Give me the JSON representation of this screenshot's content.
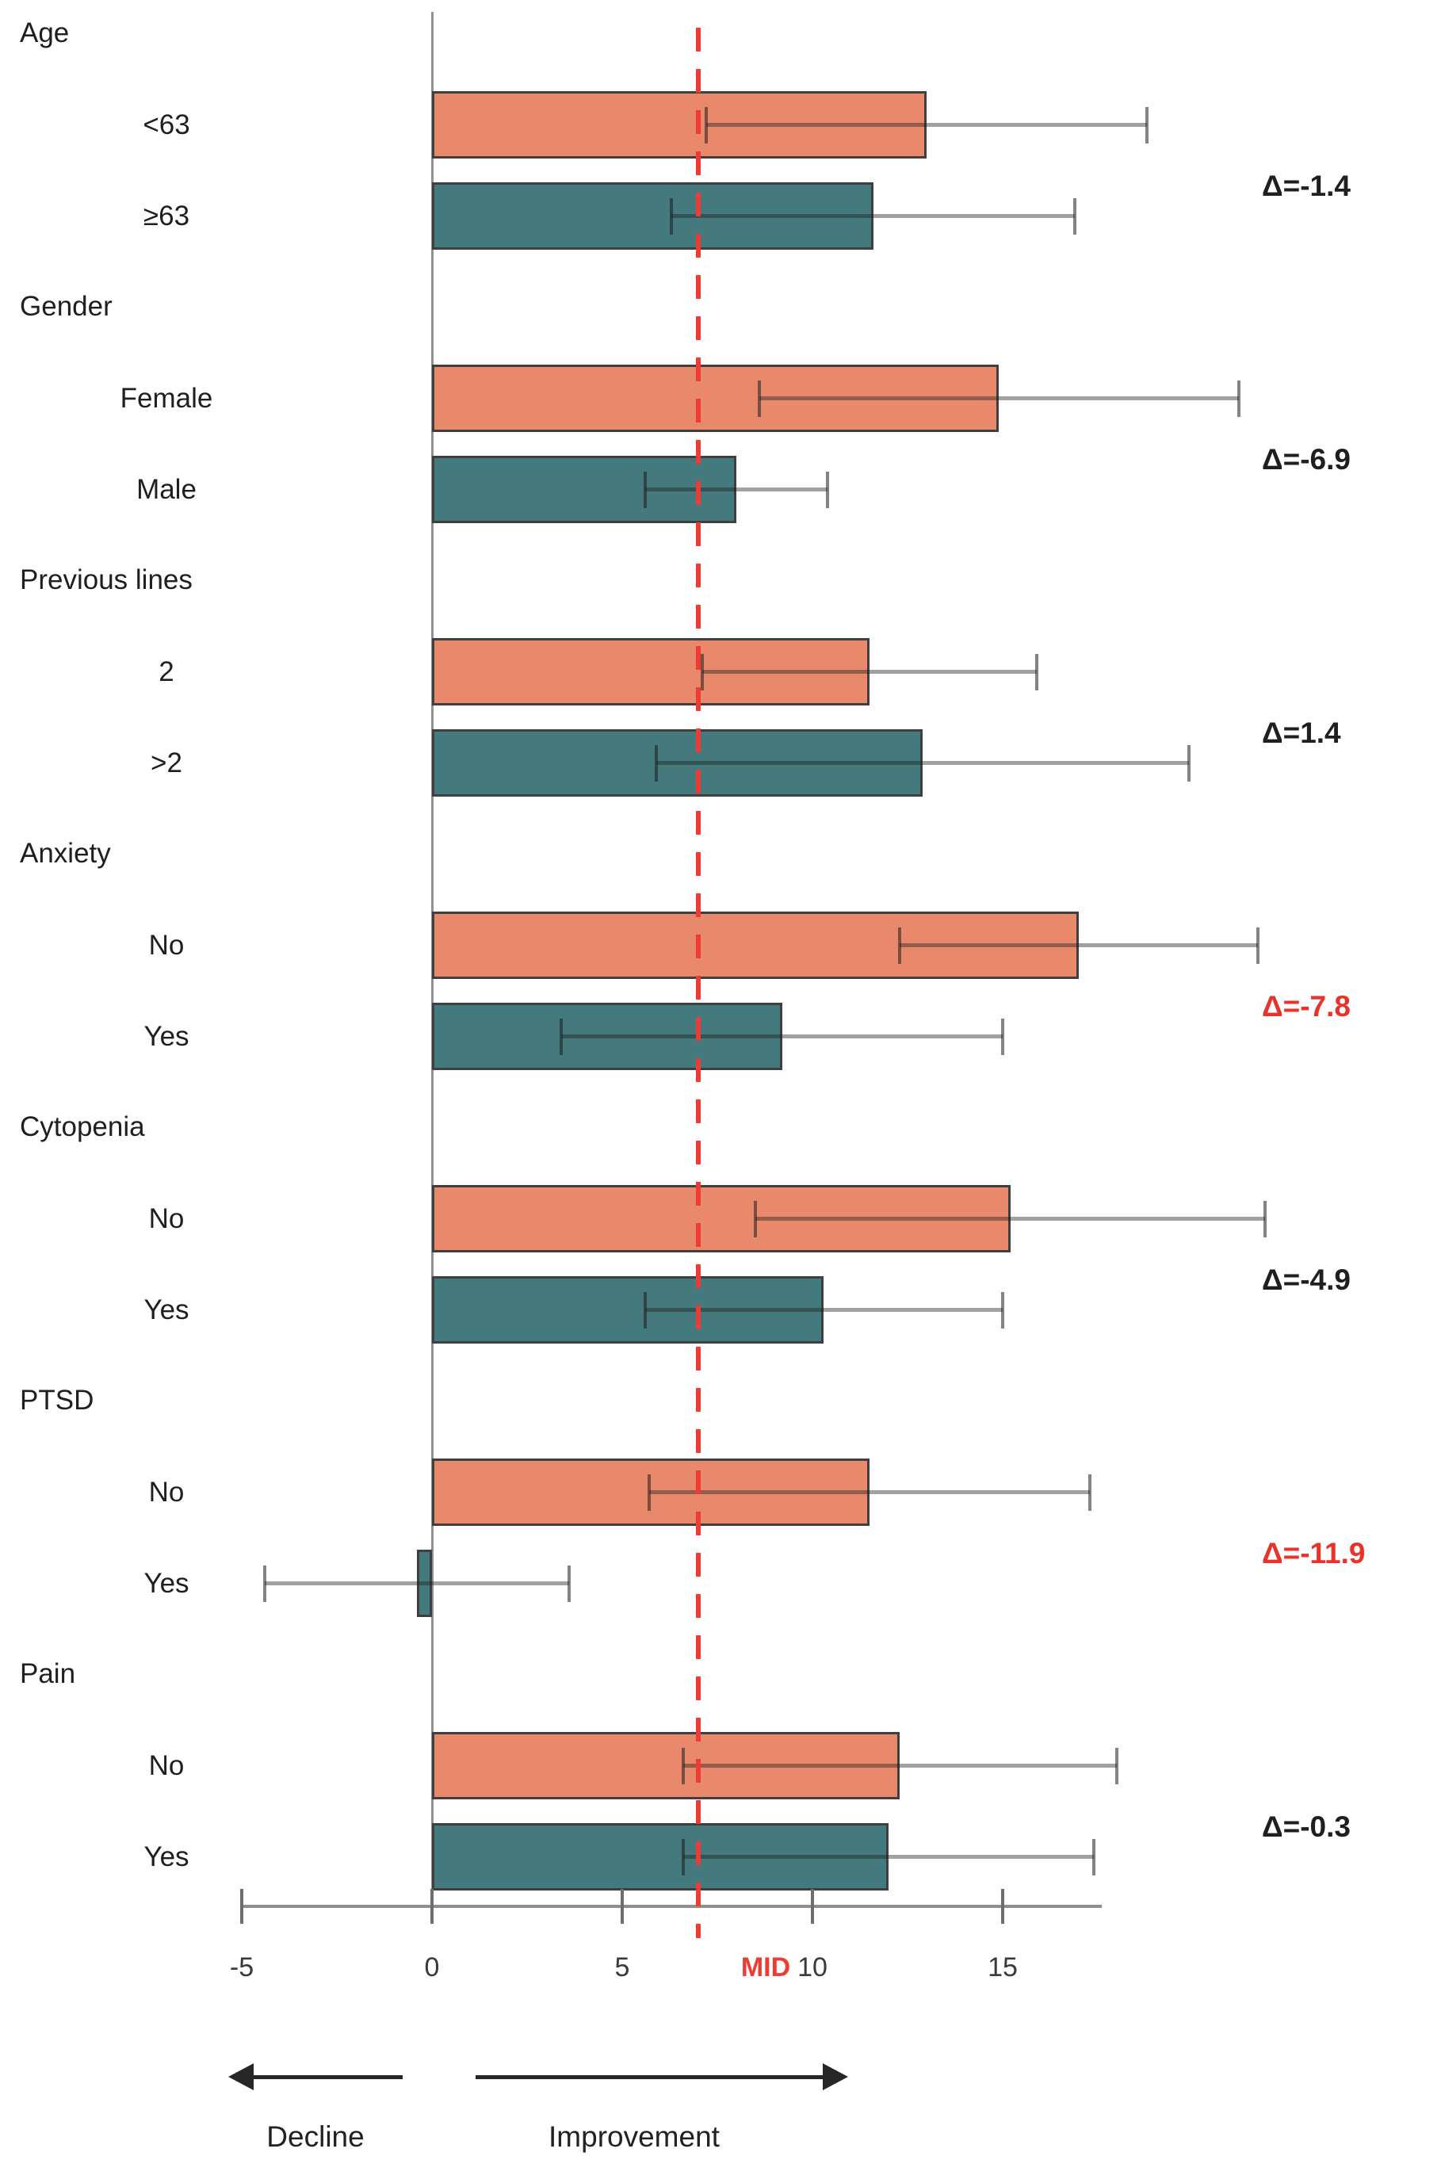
{
  "chart_data": {
    "type": "bar",
    "orientation": "horizontal",
    "title": "",
    "xlim": [
      -5.5,
      23
    ],
    "grid": false,
    "axis": {
      "ticks": [
        {
          "label": "-5",
          "value": -5
        },
        {
          "label": "0",
          "value": 0
        },
        {
          "label": "5",
          "value": 5
        },
        {
          "label": "10",
          "value": 10
        },
        {
          "label": "15",
          "value": 15
        }
      ],
      "mid_marker": {
        "label": "MID",
        "value": 7,
        "color": "#ee3b33"
      }
    },
    "colors": {
      "first_row_bar": "#e8896c",
      "second_row_bar": "#44797d",
      "bar_edge": "#3f3f3f",
      "highlight_delta": "#e8322a",
      "normal_delta": "#1f1f1f"
    },
    "groups": [
      {
        "label": "Age",
        "delta_label": "Δ=-1.4",
        "delta_highlight": false,
        "rows": [
          {
            "label": "<63",
            "value": 13.0,
            "ci_low": 7.2,
            "ci_high": 18.8
          },
          {
            "label": "≥63",
            "value": 11.6,
            "ci_low": 6.3,
            "ci_high": 16.9
          }
        ]
      },
      {
        "label": "Gender",
        "delta_label": "Δ=-6.9",
        "delta_highlight": false,
        "rows": [
          {
            "label": "Female",
            "value": 14.9,
            "ci_low": 8.6,
            "ci_high": 21.2
          },
          {
            "label": "Male",
            "value": 8.0,
            "ci_low": 5.6,
            "ci_high": 10.4
          }
        ]
      },
      {
        "label": "Previous lines",
        "delta_label": "Δ=1.4",
        "delta_highlight": false,
        "rows": [
          {
            "label": "2",
            "value": 11.5,
            "ci_low": 7.1,
            "ci_high": 15.9
          },
          {
            "label": ">2",
            "value": 12.9,
            "ci_low": 5.9,
            "ci_high": 19.9
          }
        ]
      },
      {
        "label": "Anxiety",
        "delta_label": "Δ=-7.8",
        "delta_highlight": true,
        "rows": [
          {
            "label": "No",
            "value": 17.0,
            "ci_low": 12.3,
            "ci_high": 21.7
          },
          {
            "label": "Yes",
            "value": 9.2,
            "ci_low": 3.4,
            "ci_high": 15.0
          }
        ]
      },
      {
        "label": "Cytopenia",
        "delta_label": "Δ=-4.9",
        "delta_highlight": false,
        "rows": [
          {
            "label": "No",
            "value": 15.2,
            "ci_low": 8.5,
            "ci_high": 21.9
          },
          {
            "label": "Yes",
            "value": 10.3,
            "ci_low": 5.6,
            "ci_high": 15.0
          }
        ]
      },
      {
        "label": "PTSD",
        "delta_label": "Δ=-11.9",
        "delta_highlight": true,
        "rows": [
          {
            "label": "No",
            "value": 11.5,
            "ci_low": 5.7,
            "ci_high": 17.3
          },
          {
            "label": "Yes",
            "value": -0.4,
            "ci_low": -4.4,
            "ci_high": 3.6
          }
        ]
      },
      {
        "label": "Pain",
        "delta_label": "Δ=-0.3",
        "delta_highlight": false,
        "rows": [
          {
            "label": "No",
            "value": 12.3,
            "ci_low": 6.6,
            "ci_high": 18.0
          },
          {
            "label": "Yes",
            "value": 12.0,
            "ci_low": 6.6,
            "ci_high": 17.4
          }
        ]
      }
    ],
    "footer": {
      "decline_label": "Decline",
      "improvement_label": "Improvement"
    }
  }
}
